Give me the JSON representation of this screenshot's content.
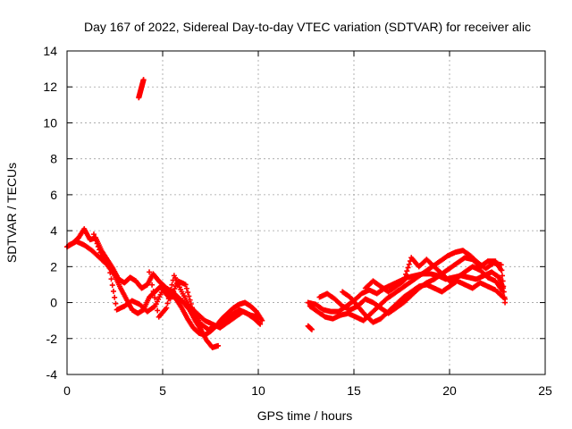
{
  "chart_data": {
    "type": "scatter",
    "title": "Day 167 of 2022, Sidereal Day-to-day VTEC variation (SDTVAR) for receiver alic",
    "xlabel": "GPS time / hours",
    "ylabel": "SDTVAR / TECUs",
    "xlim": [
      0,
      25
    ],
    "ylim": [
      -4,
      14
    ],
    "x_ticks": [
      0,
      5,
      10,
      15,
      20,
      25
    ],
    "y_ticks": [
      -4,
      -2,
      0,
      2,
      4,
      6,
      8,
      10,
      12,
      14
    ],
    "grid": true,
    "legend": "none",
    "marker": "+",
    "series": [
      {
        "name": "SDTVAR",
        "color": "#ff0000",
        "tracks": [
          [
            [
              0.0,
              3.1
            ],
            [
              0.3,
              3.3
            ],
            [
              0.6,
              3.6
            ],
            [
              0.9,
              4.1
            ],
            [
              1.2,
              3.5
            ],
            [
              1.5,
              3.6
            ],
            [
              1.8,
              2.9
            ],
            [
              2.1,
              2.4
            ],
            [
              2.4,
              1.9
            ],
            [
              2.7,
              1.3
            ],
            [
              3.0,
              1.1
            ],
            [
              3.3,
              1.4
            ],
            [
              3.6,
              1.2
            ],
            [
              3.9,
              0.8
            ],
            [
              4.2,
              1.0
            ],
            [
              4.5,
              1.6
            ],
            [
              4.8,
              1.2
            ],
            [
              5.1,
              0.9
            ],
            [
              5.4,
              0.5
            ],
            [
              5.7,
              0.2
            ],
            [
              6.0,
              -0.3
            ],
            [
              6.3,
              -0.9
            ],
            [
              6.6,
              -1.4
            ],
            [
              6.9,
              -1.7
            ],
            [
              7.2,
              -1.8
            ],
            [
              7.5,
              -1.6
            ],
            [
              7.8,
              -1.3
            ],
            [
              8.1,
              -0.9
            ],
            [
              8.4,
              -0.6
            ],
            [
              8.7,
              -0.3
            ],
            [
              9.0,
              -0.1
            ],
            [
              9.3,
              0.0
            ],
            [
              9.6,
              -0.2
            ],
            [
              9.9,
              -0.5
            ],
            [
              10.2,
              -1.0
            ]
          ],
          [
            [
              0.1,
              3.2
            ],
            [
              0.5,
              3.4
            ],
            [
              0.9,
              3.2
            ],
            [
              1.3,
              2.9
            ],
            [
              1.7,
              2.5
            ],
            [
              2.1,
              2.1
            ],
            [
              2.5,
              1.5
            ],
            [
              2.8,
              0.8
            ],
            [
              3.1,
              0.2
            ],
            [
              3.4,
              -0.4
            ],
            [
              3.7,
              -0.6
            ],
            [
              4.0,
              -0.4
            ],
            [
              4.3,
              0.3
            ],
            [
              4.6,
              0.6
            ],
            [
              4.9,
              0.9
            ],
            [
              5.2,
              0.8
            ],
            [
              5.5,
              0.6
            ],
            [
              5.8,
              0.3
            ],
            [
              6.1,
              0.0
            ],
            [
              6.4,
              -0.4
            ],
            [
              6.7,
              -1.0
            ],
            [
              7.0,
              -1.5
            ],
            [
              7.3,
              -2.1
            ],
            [
              7.6,
              -2.5
            ],
            [
              7.9,
              -2.4
            ]
          ],
          [
            [
              1.4,
              3.8
            ],
            [
              1.8,
              2.6
            ],
            [
              2.2,
              2.0
            ],
            [
              2.6,
              -0.4
            ],
            [
              3.0,
              -0.2
            ],
            [
              3.4,
              0.1
            ],
            [
              3.8,
              -0.1
            ],
            [
              4.2,
              -0.5
            ],
            [
              4.6,
              -0.2
            ],
            [
              5.0,
              0.7
            ],
            [
              5.4,
              0.2
            ],
            [
              5.8,
              1.2
            ],
            [
              6.2,
              1.0
            ],
            [
              6.6,
              -0.5
            ],
            [
              7.0,
              -1.2
            ],
            [
              7.4,
              -1.5
            ],
            [
              7.8,
              -1.3
            ],
            [
              8.2,
              -1.1
            ],
            [
              8.6,
              -0.7
            ],
            [
              9.0,
              -0.4
            ],
            [
              9.4,
              -0.6
            ],
            [
              9.8,
              -0.9
            ],
            [
              10.1,
              -1.2
            ]
          ],
          [
            [
              4.3,
              1.7
            ],
            [
              4.8,
              -0.8
            ],
            [
              5.2,
              -0.3
            ],
            [
              5.6,
              1.5
            ],
            [
              6.0,
              0.6
            ],
            [
              6.4,
              -0.2
            ],
            [
              6.8,
              -0.6
            ],
            [
              7.2,
              -1.0
            ],
            [
              7.6,
              -1.2
            ],
            [
              8.0,
              -1.4
            ],
            [
              8.4,
              -1.1
            ],
            [
              8.8,
              -0.8
            ],
            [
              9.2,
              -0.5
            ],
            [
              9.6,
              -0.7
            ],
            [
              10.0,
              -0.8
            ]
          ],
          [
            [
              3.75,
              11.4
            ],
            [
              3.8,
              11.6
            ],
            [
              3.85,
              11.8
            ],
            [
              3.9,
              12.0
            ],
            [
              3.95,
              12.2
            ],
            [
              4.0,
              12.4
            ]
          ],
          [
            [
              12.6,
              -1.3
            ],
            [
              12.8,
              -1.5
            ]
          ],
          [
            [
              12.6,
              0.0
            ],
            [
              13.0,
              -0.1
            ],
            [
              13.4,
              -0.4
            ],
            [
              13.8,
              -0.5
            ],
            [
              14.2,
              -0.5
            ],
            [
              14.6,
              -0.2
            ],
            [
              15.0,
              0.1
            ],
            [
              15.4,
              0.5
            ],
            [
              15.8,
              0.7
            ],
            [
              16.2,
              0.5
            ],
            [
              16.6,
              0.8
            ],
            [
              17.0,
              1.0
            ],
            [
              17.4,
              1.2
            ],
            [
              17.8,
              1.4
            ],
            [
              18.2,
              1.5
            ],
            [
              18.6,
              1.6
            ],
            [
              19.0,
              1.6
            ],
            [
              19.4,
              1.5
            ],
            [
              19.8,
              1.3
            ],
            [
              20.2,
              1.4
            ],
            [
              20.6,
              1.5
            ],
            [
              21.0,
              1.4
            ],
            [
              21.4,
              1.3
            ],
            [
              21.8,
              1.5
            ],
            [
              22.2,
              1.7
            ],
            [
              22.6,
              1.4
            ],
            [
              22.8,
              0.8
            ]
          ],
          [
            [
              12.7,
              -0.2
            ],
            [
              13.1,
              -0.5
            ],
            [
              13.5,
              -0.8
            ],
            [
              13.9,
              -0.9
            ],
            [
              14.3,
              -0.7
            ],
            [
              14.7,
              -0.6
            ],
            [
              15.1,
              -0.8
            ],
            [
              15.5,
              -1.0
            ],
            [
              15.9,
              -0.6
            ],
            [
              16.3,
              -0.2
            ],
            [
              16.7,
              0.2
            ],
            [
              17.1,
              0.5
            ],
            [
              17.5,
              0.8
            ],
            [
              17.9,
              1.1
            ],
            [
              18.3,
              1.4
            ],
            [
              18.7,
              1.7
            ],
            [
              19.1,
              2.0
            ],
            [
              19.5,
              2.3
            ],
            [
              19.9,
              2.6
            ],
            [
              20.3,
              2.8
            ],
            [
              20.7,
              2.9
            ],
            [
              21.1,
              2.6
            ],
            [
              21.5,
              2.2
            ],
            [
              21.9,
              1.9
            ],
            [
              22.3,
              2.2
            ],
            [
              22.7,
              2.1
            ],
            [
              22.9,
              0.0
            ]
          ],
          [
            [
              13.2,
              0.3
            ],
            [
              13.6,
              0.5
            ],
            [
              14.0,
              0.2
            ],
            [
              14.4,
              -0.2
            ],
            [
              14.8,
              -0.4
            ],
            [
              15.2,
              -0.2
            ],
            [
              15.6,
              0.2
            ],
            [
              16.0,
              0.0
            ],
            [
              16.4,
              -0.3
            ],
            [
              16.8,
              -0.6
            ],
            [
              17.2,
              -0.3
            ],
            [
              17.6,
              0.0
            ],
            [
              18.0,
              0.4
            ],
            [
              18.4,
              0.8
            ],
            [
              18.8,
              1.1
            ],
            [
              19.2,
              1.3
            ],
            [
              19.6,
              1.6
            ],
            [
              20.0,
              1.9
            ],
            [
              20.4,
              2.2
            ],
            [
              20.8,
              2.5
            ],
            [
              21.2,
              2.4
            ],
            [
              21.6,
              2.0
            ],
            [
              22.0,
              2.3
            ],
            [
              22.4,
              2.3
            ],
            [
              22.7,
              1.8
            ]
          ],
          [
            [
              15.6,
              0.8
            ],
            [
              16.0,
              1.2
            ],
            [
              16.4,
              0.9
            ],
            [
              16.8,
              0.6
            ],
            [
              17.2,
              0.9
            ],
            [
              17.6,
              1.2
            ],
            [
              18.0,
              2.5
            ],
            [
              18.4,
              2.0
            ],
            [
              18.8,
              2.4
            ],
            [
              19.2,
              2.0
            ],
            [
              19.6,
              1.6
            ],
            [
              20.0,
              1.2
            ],
            [
              20.4,
              1.4
            ],
            [
              20.8,
              1.7
            ],
            [
              21.2,
              2.0
            ],
            [
              21.6,
              1.8
            ],
            [
              22.0,
              1.4
            ],
            [
              22.4,
              1.2
            ],
            [
              22.8,
              0.6
            ]
          ],
          [
            [
              14.4,
              0.6
            ],
            [
              14.8,
              0.3
            ],
            [
              15.2,
              -0.2
            ],
            [
              15.6,
              -0.7
            ],
            [
              16.0,
              -1.1
            ],
            [
              16.4,
              -0.9
            ],
            [
              16.8,
              -0.5
            ],
            [
              17.2,
              -0.1
            ],
            [
              17.6,
              0.3
            ],
            [
              18.0,
              0.6
            ],
            [
              18.4,
              0.9
            ],
            [
              18.8,
              1.0
            ],
            [
              19.2,
              0.8
            ],
            [
              19.6,
              0.6
            ],
            [
              20.0,
              0.9
            ],
            [
              20.4,
              1.2
            ],
            [
              20.8,
              1.0
            ],
            [
              21.2,
              0.8
            ],
            [
              21.6,
              1.1
            ],
            [
              22.0,
              0.9
            ],
            [
              22.4,
              0.7
            ],
            [
              22.9,
              0.2
            ]
          ]
        ]
      }
    ]
  }
}
